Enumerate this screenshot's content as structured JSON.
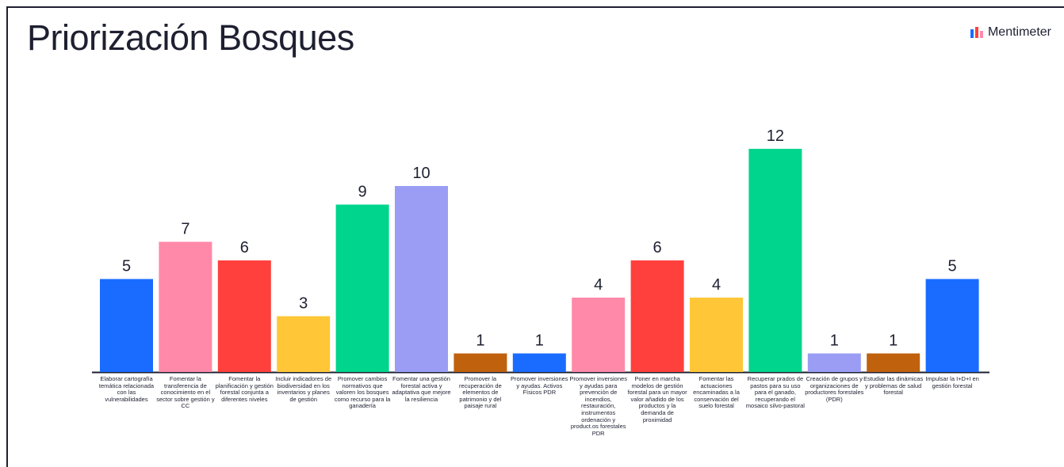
{
  "page": {
    "title": "Priorización Bosques",
    "brand": "Mentimeter",
    "brand_logo_icon": "mentimeter-logo-icon"
  },
  "chart_data": {
    "type": "bar",
    "title": "Priorización Bosques",
    "xlabel": "",
    "ylabel": "",
    "ylim": [
      0,
      12
    ],
    "grid": false,
    "legend": "none",
    "categories": [
      "Elaborar cartografía temática relacionada con las vulnerabilidades",
      "Fomentar la transferencia de conocimiento en el sector sobre gestión y CC",
      "Fomentar la planificación y gestión forestal conjunta a diferentes niveles",
      "Incluir indicadores de biodiversidad en los inventarios y planes de gestión",
      "Promover cambios normativos que valoren los bosques como recurso para la ganadería",
      "Fomentar una gestión forestal activa y adaptativa que mejore la resiliencia",
      "Promover la recuperación de elementos de patrimonio y del paisaje rural",
      "Promover inversiones y ayudas. Activos Físicos PDR",
      "Promover inversiones y ayudas para prevención de incendios, restauración, instrumentos ordenación y product.os forestales PDR",
      "Poner en marcha modelos de gestión forestal para un mayor valor añadido de los productos y la demanda de proximidad",
      "Fomentar las actuaciones encaminadas a la conservación del suelo forestal",
      "Recuperar prados de pastos para su uso para el ganado, recuperando el mosaico silvo-pastoral",
      "Creación de grupos y organizaciones de productores forestales (PDR)",
      "Estudiar las dinámicas y problemas de salud forestal",
      "Impulsar la I+D+I en gestión forestal"
    ],
    "values": [
      5,
      7,
      6,
      3,
      9,
      10,
      1,
      1,
      4,
      6,
      4,
      12,
      1,
      1,
      5
    ],
    "colors": [
      "#196cff",
      "#ff89a9",
      "#ff403d",
      "#ffc737",
      "#00d58d",
      "#9a9df3",
      "#c0610e",
      "#196cff",
      "#ff89a9",
      "#ff403d",
      "#ffc737",
      "#00d58d",
      "#9a9df3",
      "#c0610e",
      "#196cff"
    ]
  }
}
